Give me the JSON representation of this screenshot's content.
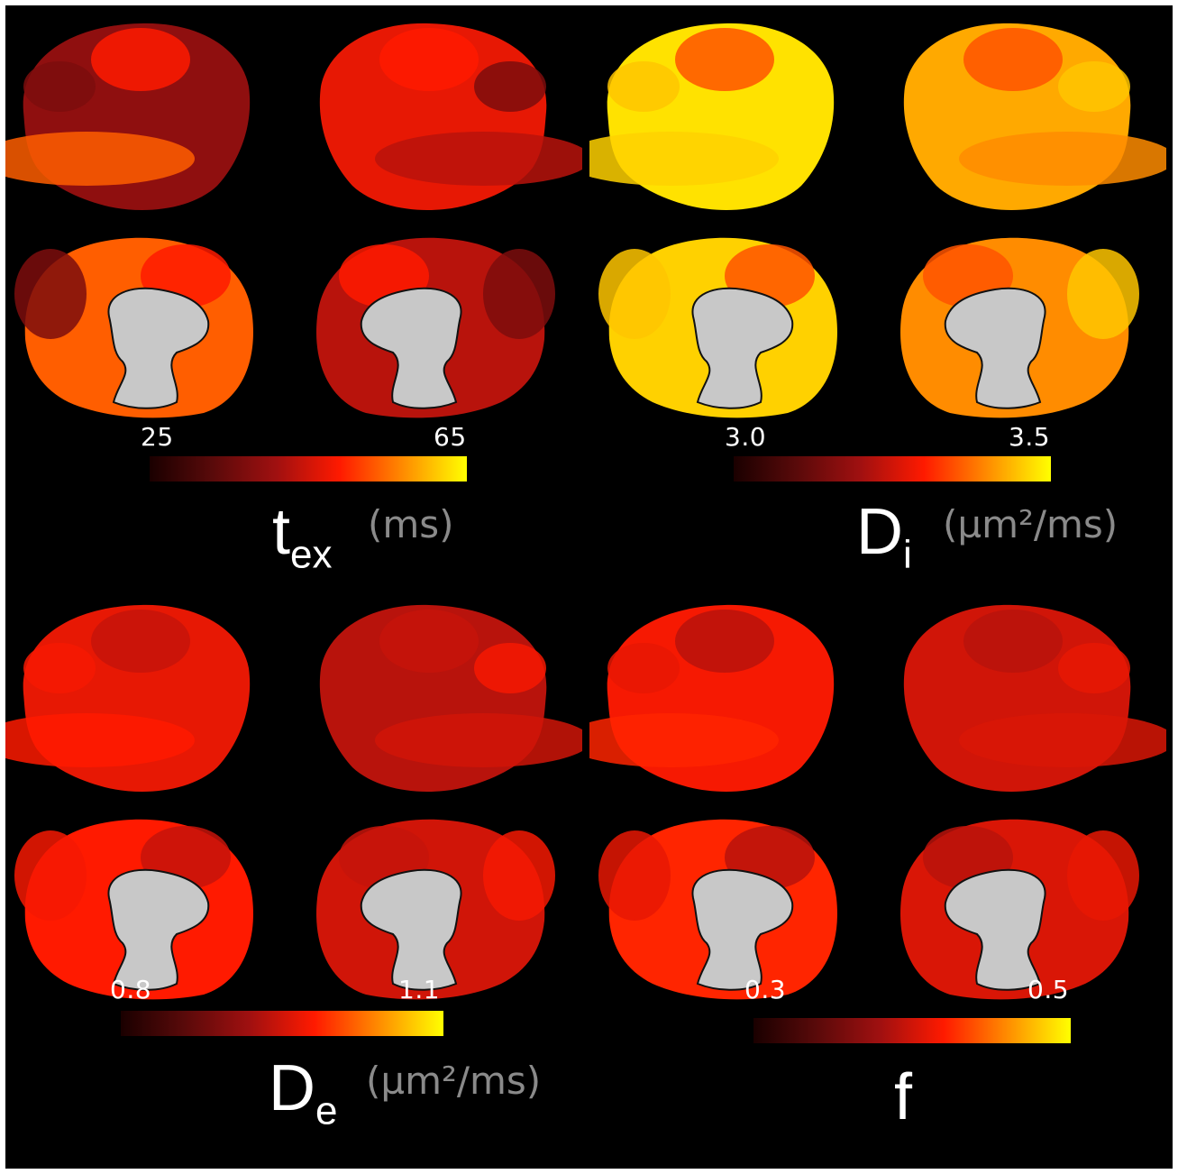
{
  "colors": {
    "background": "#000000",
    "colormap": [
      "#1a0000",
      "#5a0a0a",
      "#a01010",
      "#ff1a00",
      "#ff8c00",
      "#ffff00"
    ],
    "cortex_gray": "#c8c8c8"
  },
  "panels": [
    {
      "id": "tex",
      "symbol": "t",
      "subscript": "ex",
      "unit": "(ms)",
      "cbar_min": "25",
      "cbar_max": "65",
      "level": [
        0.35,
        0.55,
        0.72,
        0.45,
        0.3,
        0.6
      ]
    },
    {
      "id": "di",
      "symbol": "D",
      "subscript": "i",
      "unit": "(µm²/ms)",
      "cbar_min": "3.0",
      "cbar_max": "3.5",
      "level": [
        0.95,
        0.85,
        0.92,
        0.8,
        0.9,
        0.7
      ]
    },
    {
      "id": "de",
      "symbol": "D",
      "subscript": "e",
      "unit": "(µm²/ms)",
      "cbar_min": "0.8",
      "cbar_max": "1.1",
      "level": [
        0.55,
        0.45,
        0.6,
        0.5,
        0.58,
        0.48
      ]
    },
    {
      "id": "f",
      "symbol": "f",
      "subscript": "",
      "unit": "",
      "cbar_min": "0.3",
      "cbar_max": "0.5",
      "level": [
        0.58,
        0.5,
        0.62,
        0.52,
        0.55,
        0.45
      ]
    }
  ]
}
